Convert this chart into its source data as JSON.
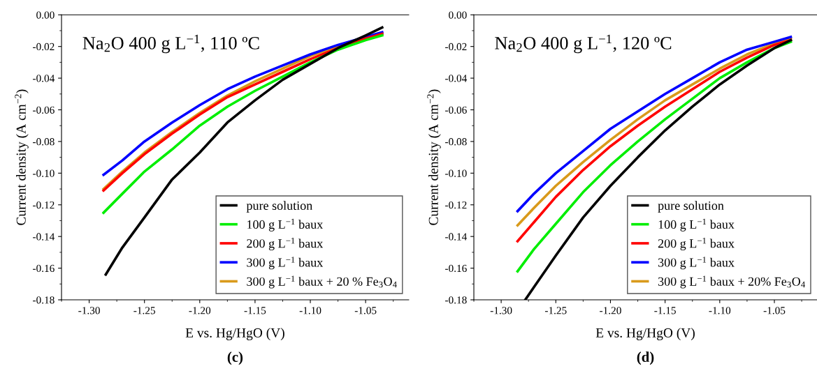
{
  "chart_data": [
    {
      "type": "line",
      "title": "Na$_{2}$O 400 g L$^{−1}$, 110 ºC",
      "xlabel": "E vs. Hg/HgO (V)",
      "ylabel": "Current density (A cm$^{−2}$)",
      "annotations": [
        "(c)"
      ],
      "xlim": [
        -1.325,
        -1.011
      ],
      "xticks": [
        {
          "value": -1.3,
          "label": "-1.30"
        },
        {
          "value": -1.25,
          "label": "-1.25"
        },
        {
          "value": -1.2,
          "label": "-1.20"
        },
        {
          "value": -1.15,
          "label": "-1.15"
        },
        {
          "value": -1.1,
          "label": "-1.10"
        },
        {
          "value": -1.05,
          "label": "-1.05"
        }
      ],
      "ylim": [
        -0.18,
        0.0
      ],
      "yticks": [
        {
          "value": -0.18,
          "label": "-0.18"
        },
        {
          "value": -0.16,
          "label": "-0.16"
        },
        {
          "value": -0.14,
          "label": "-0.14"
        },
        {
          "value": -0.12,
          "label": "-0.12"
        },
        {
          "value": -0.1,
          "label": "-0.10"
        },
        {
          "value": -0.08,
          "label": "-0.08"
        },
        {
          "value": -0.06,
          "label": "-0.06"
        },
        {
          "value": -0.04,
          "label": "-0.04"
        },
        {
          "value": -0.02,
          "label": "-0.02"
        },
        {
          "value": 0.0,
          "label": "0.00"
        }
      ],
      "grid": false,
      "legend": "bottom right",
      "line_style": "solid",
      "x": [
        -1.285,
        -1.27,
        -1.25,
        -1.225,
        -1.2,
        -1.175,
        -1.15,
        -1.125,
        -1.1,
        -1.075,
        -1.05,
        -1.035
      ],
      "series": [
        {
          "name": "pure solution",
          "color": "#000000",
          "values": [
            -0.164,
            -0.147,
            -0.128,
            -0.104,
            -0.087,
            -0.068,
            -0.054,
            -0.041,
            -0.031,
            -0.021,
            -0.013,
            -0.008
          ]
        },
        {
          "name": "100 g L$^{−1}$ baux",
          "color": "#00ee00",
          "x": [
            -1.287,
            -1.27,
            -1.25,
            -1.225,
            -1.2,
            -1.175,
            -1.15,
            -1.125,
            -1.1,
            -1.075,
            -1.05,
            -1.035
          ],
          "values": [
            -0.125,
            -0.113,
            -0.099,
            -0.085,
            -0.07,
            -0.058,
            -0.048,
            -0.039,
            -0.03,
            -0.022,
            -0.016,
            -0.013
          ]
        },
        {
          "name": "200 g L$^{−1}$ baux",
          "color": "#ff0000",
          "x": [
            -1.287,
            -1.27,
            -1.25,
            -1.225,
            -1.2,
            -1.175,
            -1.15,
            -1.125,
            -1.1,
            -1.075,
            -1.05,
            -1.035
          ],
          "values": [
            -0.111,
            -0.1,
            -0.088,
            -0.075,
            -0.063,
            -0.052,
            -0.044,
            -0.036,
            -0.028,
            -0.021,
            -0.015,
            -0.012
          ]
        },
        {
          "name": "300 g L$^{−1}$ baux",
          "color": "#0000ff",
          "x": [
            -1.287,
            -1.27,
            -1.25,
            -1.225,
            -1.2,
            -1.175,
            -1.15,
            -1.125,
            -1.1,
            -1.075,
            -1.05,
            -1.035
          ],
          "values": [
            -0.101,
            -0.092,
            -0.08,
            -0.068,
            -0.057,
            -0.047,
            -0.039,
            -0.032,
            -0.025,
            -0.019,
            -0.014,
            -0.011
          ]
        },
        {
          "name": "300 g L$^{−1}$ baux + 20 % Fe$_{3}$O$_{4}$",
          "color": "#d99a1b",
          "x": [
            -1.287,
            -1.27,
            -1.25,
            -1.225,
            -1.2,
            -1.175,
            -1.15,
            -1.125,
            -1.1,
            -1.075,
            -1.05,
            -1.035
          ],
          "values": [
            -0.11,
            -0.099,
            -0.087,
            -0.074,
            -0.062,
            -0.051,
            -0.042,
            -0.034,
            -0.026,
            -0.02,
            -0.014,
            -0.012
          ]
        }
      ]
    },
    {
      "type": "line",
      "title": "Na$_{2}$O 400 g L$^{−1}$, 120 ºC",
      "xlabel": "E vs. Hg/HgO (V)",
      "ylabel": "Current density (A cm$^{−2}$)",
      "annotations": [
        "(d)"
      ],
      "xlim": [
        -1.325,
        -1.011
      ],
      "xticks": [
        {
          "value": -1.3,
          "label": "-1.30"
        },
        {
          "value": -1.25,
          "label": "-1.25"
        },
        {
          "value": -1.2,
          "label": "-1.20"
        },
        {
          "value": -1.15,
          "label": "-1.15"
        },
        {
          "value": -1.1,
          "label": "-1.10"
        },
        {
          "value": -1.05,
          "label": "-1.05"
        }
      ],
      "ylim": [
        -0.18,
        0.0
      ],
      "yticks": [
        {
          "value": -0.18,
          "label": "-0.18"
        },
        {
          "value": -0.16,
          "label": "-0.16"
        },
        {
          "value": -0.14,
          "label": "-0.14"
        },
        {
          "value": -0.12,
          "label": "-0.12"
        },
        {
          "value": -0.1,
          "label": "-0.10"
        },
        {
          "value": -0.08,
          "label": "-0.08"
        },
        {
          "value": -0.06,
          "label": "-0.06"
        },
        {
          "value": -0.04,
          "label": "-0.04"
        },
        {
          "value": -0.02,
          "label": "-0.02"
        },
        {
          "value": 0.0,
          "label": "0.00"
        }
      ],
      "grid": false,
      "legend": "bottom right",
      "line_style": "solid",
      "x": [
        -1.285,
        -1.27,
        -1.25,
        -1.225,
        -1.2,
        -1.175,
        -1.15,
        -1.125,
        -1.1,
        -1.075,
        -1.05,
        -1.035
      ],
      "series": [
        {
          "name": "pure solution",
          "color": "#000000",
          "x": [
            -1.278,
            -1.27,
            -1.25,
            -1.225,
            -1.2,
            -1.175,
            -1.15,
            -1.125,
            -1.1,
            -1.075,
            -1.05,
            -1.035
          ],
          "values": [
            -0.18,
            -0.172,
            -0.152,
            -0.128,
            -0.108,
            -0.09,
            -0.073,
            -0.058,
            -0.044,
            -0.032,
            -0.021,
            -0.016
          ]
        },
        {
          "name": "100 g L$^{−1}$ baux",
          "color": "#00ee00",
          "values": [
            -0.162,
            -0.148,
            -0.132,
            -0.112,
            -0.095,
            -0.08,
            -0.066,
            -0.053,
            -0.04,
            -0.03,
            -0.021,
            -0.017
          ]
        },
        {
          "name": "200 g L$^{−1}$ baux",
          "color": "#ff0000",
          "values": [
            -0.143,
            -0.131,
            -0.115,
            -0.098,
            -0.083,
            -0.07,
            -0.058,
            -0.047,
            -0.036,
            -0.027,
            -0.019,
            -0.016
          ]
        },
        {
          "name": "300 g L$^{−1}$ baux",
          "color": "#0000ff",
          "values": [
            -0.124,
            -0.113,
            -0.1,
            -0.086,
            -0.072,
            -0.061,
            -0.05,
            -0.04,
            -0.03,
            -0.022,
            -0.017,
            -0.014
          ]
        },
        {
          "name": "300 g L$^{−1}$ baux + 20% Fe$_{3}$O$_{4}$",
          "color": "#d99a1b",
          "values": [
            -0.133,
            -0.122,
            -0.108,
            -0.093,
            -0.079,
            -0.066,
            -0.054,
            -0.044,
            -0.034,
            -0.025,
            -0.018,
            -0.015
          ]
        }
      ]
    }
  ]
}
